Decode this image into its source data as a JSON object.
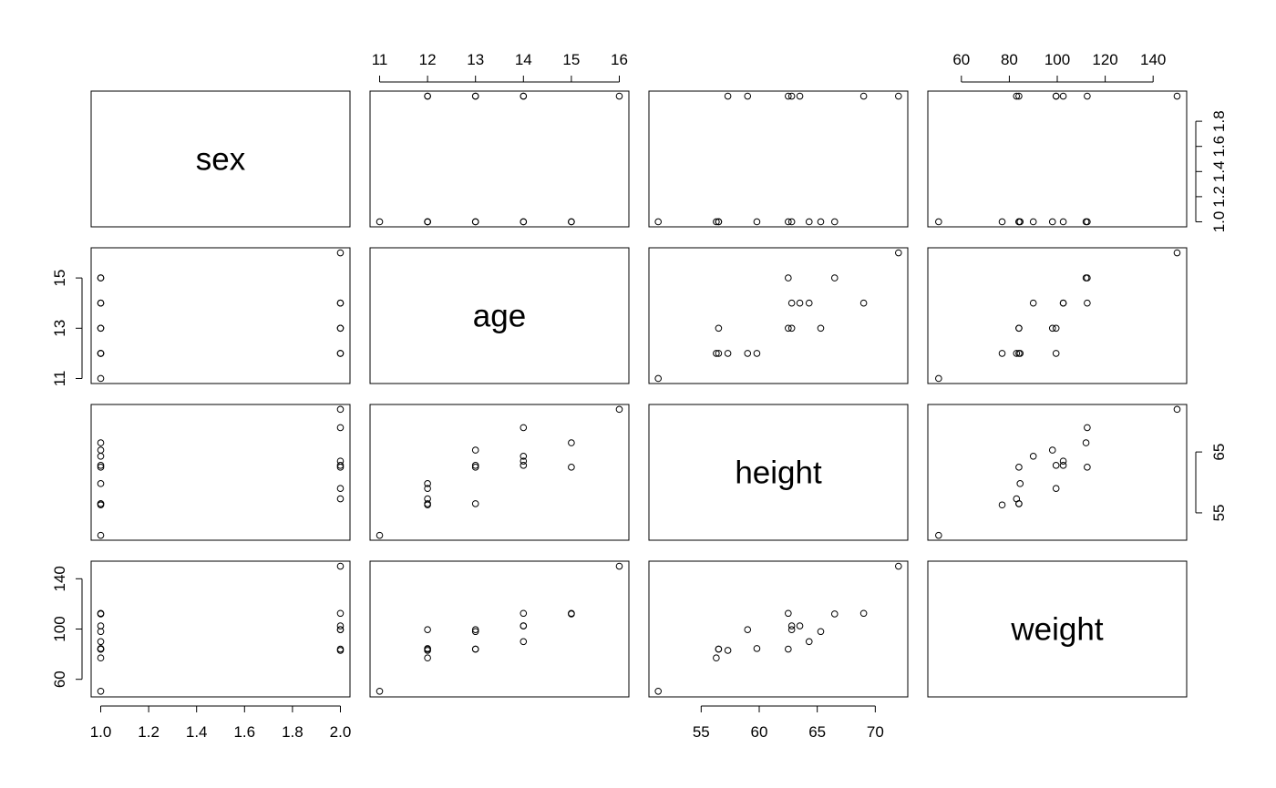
{
  "chart_data": {
    "type": "scatter",
    "variables": [
      "sex",
      "age",
      "height",
      "weight"
    ],
    "observations": [
      {
        "sex": 1,
        "age": 11,
        "height": 51.3,
        "weight": 50.5
      },
      {
        "sex": 1,
        "age": 12,
        "height": 56.3,
        "weight": 77.0
      },
      {
        "sex": 1,
        "age": 12,
        "height": 56.5,
        "weight": 84.0
      },
      {
        "sex": 1,
        "age": 12,
        "height": 59.8,
        "weight": 84.5
      },
      {
        "sex": 1,
        "age": 13,
        "height": 56.5,
        "weight": 84.0
      },
      {
        "sex": 1,
        "age": 13,
        "height": 65.3,
        "weight": 98.0
      },
      {
        "sex": 1,
        "age": 14,
        "height": 62.8,
        "weight": 102.5
      },
      {
        "sex": 1,
        "age": 14,
        "height": 64.3,
        "weight": 90.0
      },
      {
        "sex": 1,
        "age": 15,
        "height": 62.5,
        "weight": 112.5
      },
      {
        "sex": 1,
        "age": 15,
        "height": 66.5,
        "weight": 112.0
      },
      {
        "sex": 2,
        "age": 12,
        "height": 57.3,
        "weight": 83.0
      },
      {
        "sex": 2,
        "age": 12,
        "height": 59.0,
        "weight": 99.5
      },
      {
        "sex": 2,
        "age": 13,
        "height": 62.5,
        "weight": 84.0
      },
      {
        "sex": 2,
        "age": 14,
        "height": 63.5,
        "weight": 102.5
      },
      {
        "sex": 2,
        "age": 14,
        "height": 69.0,
        "weight": 112.5
      },
      {
        "sex": 2,
        "age": 16,
        "height": 72.0,
        "weight": 150.0
      },
      {
        "sex": 2,
        "age": 13,
        "height": 62.8,
        "weight": 99.5
      }
    ],
    "ranges": {
      "sex": [
        0.96,
        2.04
      ],
      "age": [
        10.8,
        16.2
      ],
      "height": [
        50.5,
        72.8
      ],
      "weight": [
        46.0,
        154.0
      ]
    },
    "tick_labels": {
      "sex": [
        "1.0",
        "1.2",
        "1.4",
        "1.6",
        "1.8",
        "2.0"
      ],
      "age": [
        "11",
        "12",
        "13",
        "14",
        "15",
        "16"
      ],
      "height": [
        "55",
        "60",
        "65",
        "70"
      ],
      "weight": [
        "60",
        "80",
        "100",
        "120",
        "140"
      ]
    },
    "left_tick_labels": {
      "age": [
        "11",
        "13",
        "15"
      ],
      "weight": [
        "60",
        "100",
        "140"
      ]
    },
    "right_tick_labels": {
      "sex": [
        "1.0",
        "1.2",
        "1.4",
        "1.6",
        "1.8"
      ],
      "height": [
        "55",
        "65"
      ]
    },
    "grid": false
  }
}
